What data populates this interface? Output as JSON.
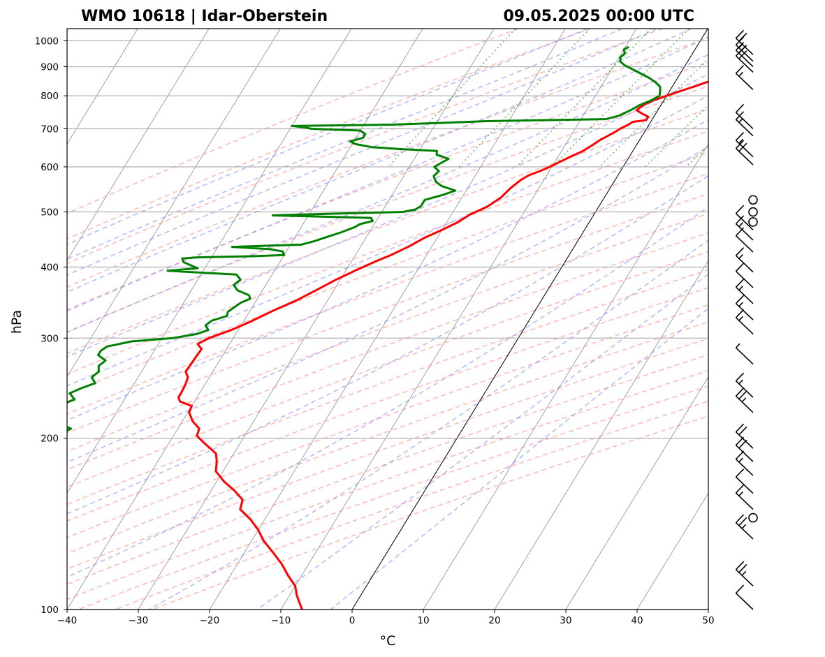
{
  "chart_data": {
    "type": "line",
    "subtype": "skew-T log-p",
    "title_left": "WMO 10618 | Idar-Oberstein",
    "title_right": "09.05.2025 00:00 UTC",
    "xlabel": "°C",
    "ylabel": "hPa",
    "xlim": [
      -40,
      50
    ],
    "ylim": [
      1050,
      100
    ],
    "y_scale": "log",
    "x_ticks": [
      -40,
      -30,
      -20,
      -10,
      0,
      10,
      20,
      30,
      40,
      50
    ],
    "x_tick_labels": [
      "−40",
      "−30",
      "−20",
      "−10",
      "0",
      "10",
      "20",
      "30",
      "40",
      "50"
    ],
    "y_ticks": [
      1000,
      900,
      800,
      700,
      600,
      500,
      400,
      300,
      200,
      100
    ],
    "y_tick_labels": [
      "1000",
      "900",
      "800",
      "700",
      "600",
      "500",
      "400",
      "300",
      "200",
      "100"
    ],
    "grid": true,
    "background_lines": {
      "isotherms": {
        "color": "#808080",
        "style": "solid"
      },
      "dry_adiabats": {
        "color": "#ff7f7f",
        "style": "dashed"
      },
      "moist_adiabats": {
        "color": "#8080ff",
        "style": "dashed"
      },
      "mixing_ratio_lines": {
        "color": "#2ca02c",
        "style": "dotted"
      },
      "zero_isotherm_highlight": {
        "color": "#000000"
      }
    },
    "series": [
      {
        "color": "#ff0000",
        "pressure": [
          975,
          965,
          950,
          935,
          920,
          905,
          890,
          875,
          860,
          845,
          830,
          815,
          800,
          785,
          770,
          755,
          745,
          735,
          725,
          720,
          710,
          700,
          690,
          680,
          670,
          655,
          640,
          625,
          610,
          600,
          590,
          580,
          570,
          550,
          530,
          510,
          495,
          480,
          465,
          450,
          435,
          420,
          410,
          395,
          380,
          365,
          350,
          335,
          320,
          310,
          300,
          293,
          287,
          280,
          270,
          262,
          256,
          248,
          240,
          236,
          232,
          228,
          222,
          214,
          208,
          202,
          196,
          188,
          182,
          175,
          168,
          162,
          156,
          150,
          144,
          138,
          132,
          126,
          120,
          115,
          110,
          106,
          102,
          100
        ],
        "temperature": [
          9.5,
          10.5,
          10.3,
          9.6,
          9.5,
          10.2,
          9.0,
          7.5,
          6.0,
          4.4,
          3.0,
          1.5,
          0.0,
          -1.5,
          -2.5,
          -3.0,
          -2.0,
          -0.8,
          -0.8,
          -2.5,
          -3.0,
          -3.7,
          -4.2,
          -4.8,
          -5.5,
          -6.2,
          -7.0,
          -8.3,
          -9.5,
          -10.3,
          -11.3,
          -12.5,
          -13.2,
          -14.0,
          -14.5,
          -15.7,
          -17.4,
          -18.4,
          -20.0,
          -21.8,
          -23.2,
          -25.0,
          -26.5,
          -28.6,
          -30.6,
          -32.4,
          -34.3,
          -36.8,
          -39.1,
          -41.0,
          -43.4,
          -44.5,
          -43.5,
          -43.6,
          -43.7,
          -43.8,
          -43.0,
          -42.7,
          -42.6,
          -42.6,
          -42.0,
          -40.0,
          -39.8,
          -38.5,
          -37.0,
          -36.7,
          -35.0,
          -32.5,
          -31.7,
          -31.0,
          -29.0,
          -26.8,
          -24.8,
          -24.3,
          -22.0,
          -20.0,
          -18.3,
          -16.0,
          -13.7,
          -12.0,
          -10.0,
          -9.0,
          -7.7,
          -7.0
        ]
      },
      {
        "color": "#008000",
        "pressure": [
          975,
          965,
          950,
          935,
          920,
          905,
          890,
          875,
          860,
          845,
          830,
          815,
          800,
          785,
          770,
          755,
          745,
          738,
          728,
          722,
          718,
          712,
          708,
          704,
          700,
          695,
          685,
          675,
          665,
          658,
          650,
          645,
          640,
          630,
          625,
          620,
          615,
          608,
          600,
          590,
          578,
          565,
          555,
          545,
          535,
          525,
          512,
          505,
          500,
          496,
          493,
          488,
          482,
          476,
          470,
          460,
          452,
          444,
          438,
          434,
          430,
          426,
          420,
          418,
          416,
          414,
          408,
          402,
          398,
          394,
          388,
          380,
          372,
          364,
          357,
          352,
          346,
          340,
          334,
          328,
          322,
          316,
          310,
          305,
          300,
          296,
          290,
          285,
          280,
          274,
          268,
          262,
          256,
          250,
          245,
          240,
          234,
          229,
          224,
          218,
          212,
          208,
          204,
          200,
          196,
          192,
          186,
          180,
          172,
          164,
          156,
          148,
          140,
          132,
          124,
          118,
          112,
          106,
          102,
          100
        ],
        "temperature": [
          -9.5,
          -10.0,
          -9.5,
          -9.8,
          -9.5,
          -8.5,
          -7.0,
          -5.5,
          -4.0,
          -2.7,
          -1.7,
          -1.3,
          -1.0,
          -1.8,
          -3.0,
          -3.8,
          -4.5,
          -5.0,
          -6.5,
          -23.0,
          -28.0,
          -36.0,
          -50.0,
          -48.0,
          -47.0,
          -40.0,
          -39.0,
          -39.0,
          -40.5,
          -39.5,
          -37.0,
          -33.0,
          -27.5,
          -27.2,
          -26.2,
          -25.2,
          -25.5,
          -26.0,
          -26.5,
          -25.5,
          -25.8,
          -25.0,
          -23.8,
          -21.5,
          -23.0,
          -25.0,
          -25.0,
          -25.5,
          -27.0,
          -38.0,
          -45.0,
          -31.0,
          -30.5,
          -32.0,
          -32.5,
          -34.0,
          -35.5,
          -37.0,
          -38.5,
          -48.0,
          -42.5,
          -40.5,
          -40.0,
          -44.0,
          -52.0,
          -54.0,
          -53.5,
          -52.0,
          -51.0,
          -55.0,
          -45.0,
          -44.0,
          -44.5,
          -43.5,
          -41.5,
          -41.0,
          -42.0,
          -42.5,
          -43.0,
          -42.8,
          -44.5,
          -45.0,
          -44.2,
          -45.5,
          -48.5,
          -54.0,
          -57.0,
          -57.5,
          -57.5,
          -56.0,
          -56.5,
          -56.0,
          -56.5,
          -55.5,
          -57.0,
          -58.2,
          -57.0,
          -58.5,
          -58.0,
          -58.0,
          -57.0,
          -55.0,
          -55.8,
          -56.2,
          -55.8,
          -55.0,
          -54.3,
          -53.0,
          -51.8,
          -51.5,
          -50.5,
          -49.5,
          -48.5,
          -48.4,
          -47.8,
          -47.0,
          -46.5,
          -45.5,
          -45.0,
          -44.8
        ]
      }
    ],
    "wind_barbs": {
      "color": "#000000",
      "levels": [
        {
          "pressure": 100,
          "speed_kt": 10
        },
        {
          "pressure": 110,
          "speed_kt": 25
        },
        {
          "pressure": 133,
          "speed_kt": 25
        },
        {
          "pressure": 145,
          "speed_kt": 0
        },
        {
          "pressure": 150,
          "speed_kt": 15
        },
        {
          "pressure": 160,
          "speed_kt": 10
        },
        {
          "pressure": 172,
          "speed_kt": 15
        },
        {
          "pressure": 182,
          "speed_kt": 20
        },
        {
          "pressure": 192,
          "speed_kt": 20
        },
        {
          "pressure": 222,
          "speed_kt": 25
        },
        {
          "pressure": 236,
          "speed_kt": 15
        },
        {
          "pressure": 270,
          "speed_kt": 5
        },
        {
          "pressure": 305,
          "speed_kt": 15
        },
        {
          "pressure": 323,
          "speed_kt": 15
        },
        {
          "pressure": 345,
          "speed_kt": 15
        },
        {
          "pressure": 368,
          "speed_kt": 10
        },
        {
          "pressure": 392,
          "speed_kt": 15
        },
        {
          "pressure": 425,
          "speed_kt": 10
        },
        {
          "pressure": 446,
          "speed_kt": 15
        },
        {
          "pressure": 465,
          "speed_kt": 10
        },
        {
          "pressure": 480,
          "speed_kt": 0
        },
        {
          "pressure": 500,
          "speed_kt": 0
        },
        {
          "pressure": 525,
          "speed_kt": 0
        },
        {
          "pressure": 605,
          "speed_kt": 20
        },
        {
          "pressure": 625,
          "speed_kt": 15
        },
        {
          "pressure": 680,
          "speed_kt": 15
        },
        {
          "pressure": 700,
          "speed_kt": 10
        },
        {
          "pressure": 820,
          "speed_kt": 15
        },
        {
          "pressure": 880,
          "speed_kt": 20
        },
        {
          "pressure": 900,
          "speed_kt": 20
        },
        {
          "pressure": 920,
          "speed_kt": 15
        },
        {
          "pressure": 945,
          "speed_kt": 20
        }
      ]
    }
  }
}
